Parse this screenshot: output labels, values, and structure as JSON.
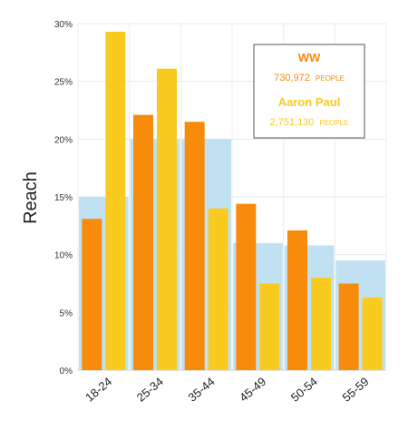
{
  "chart_data": {
    "type": "bar",
    "ylabel": "Reach",
    "xlabel": "",
    "title": "",
    "categories": [
      "18-24",
      "25-34",
      "35-44",
      "45-49",
      "50-54",
      "55-59"
    ],
    "ylim": [
      0,
      30
    ],
    "yticks": [
      0,
      5,
      10,
      15,
      20,
      25,
      30
    ],
    "ytick_labels": [
      "0%",
      "5%",
      "10%",
      "15%",
      "20%",
      "25%",
      "30%"
    ],
    "grid": true,
    "legend_position": "top-right",
    "background": {
      "values": [
        15.0,
        20.0,
        20.0,
        11.0,
        10.8,
        9.5
      ],
      "color": "#bfe1f2"
    },
    "series": [
      {
        "name": "WW",
        "count": "730,972",
        "unit": "PEOPLE",
        "color": "#f68b0c",
        "values": [
          13.1,
          22.1,
          21.5,
          14.4,
          12.1,
          7.5
        ]
      },
      {
        "name": "Aaron Paul",
        "count": "2,751,130",
        "unit": "PEOPLE",
        "color": "#f9ca1f",
        "values": [
          29.3,
          26.1,
          14.0,
          7.5,
          8.0,
          6.3
        ]
      }
    ]
  }
}
